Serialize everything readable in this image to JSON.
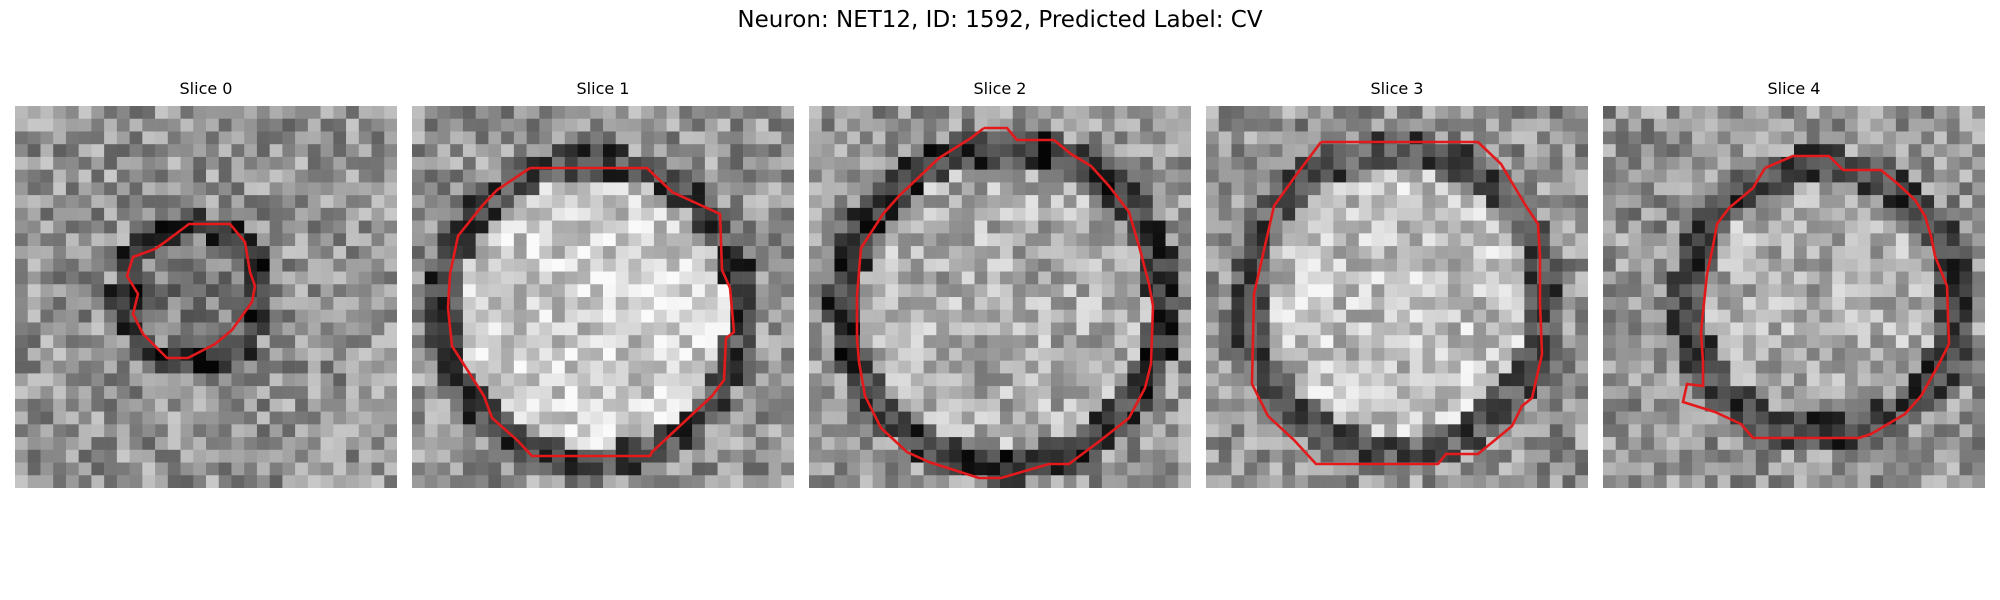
{
  "figure": {
    "title": "Neuron: NET12, ID: 1592, Predicted Label: CV",
    "colormap": "gray",
    "contour_color": "#e31a1c"
  },
  "panels": [
    {
      "title": "Slice 0"
    },
    {
      "title": "Slice 1"
    },
    {
      "title": "Slice 2"
    },
    {
      "title": "Slice 3"
    },
    {
      "title": "Slice 4"
    }
  ]
}
